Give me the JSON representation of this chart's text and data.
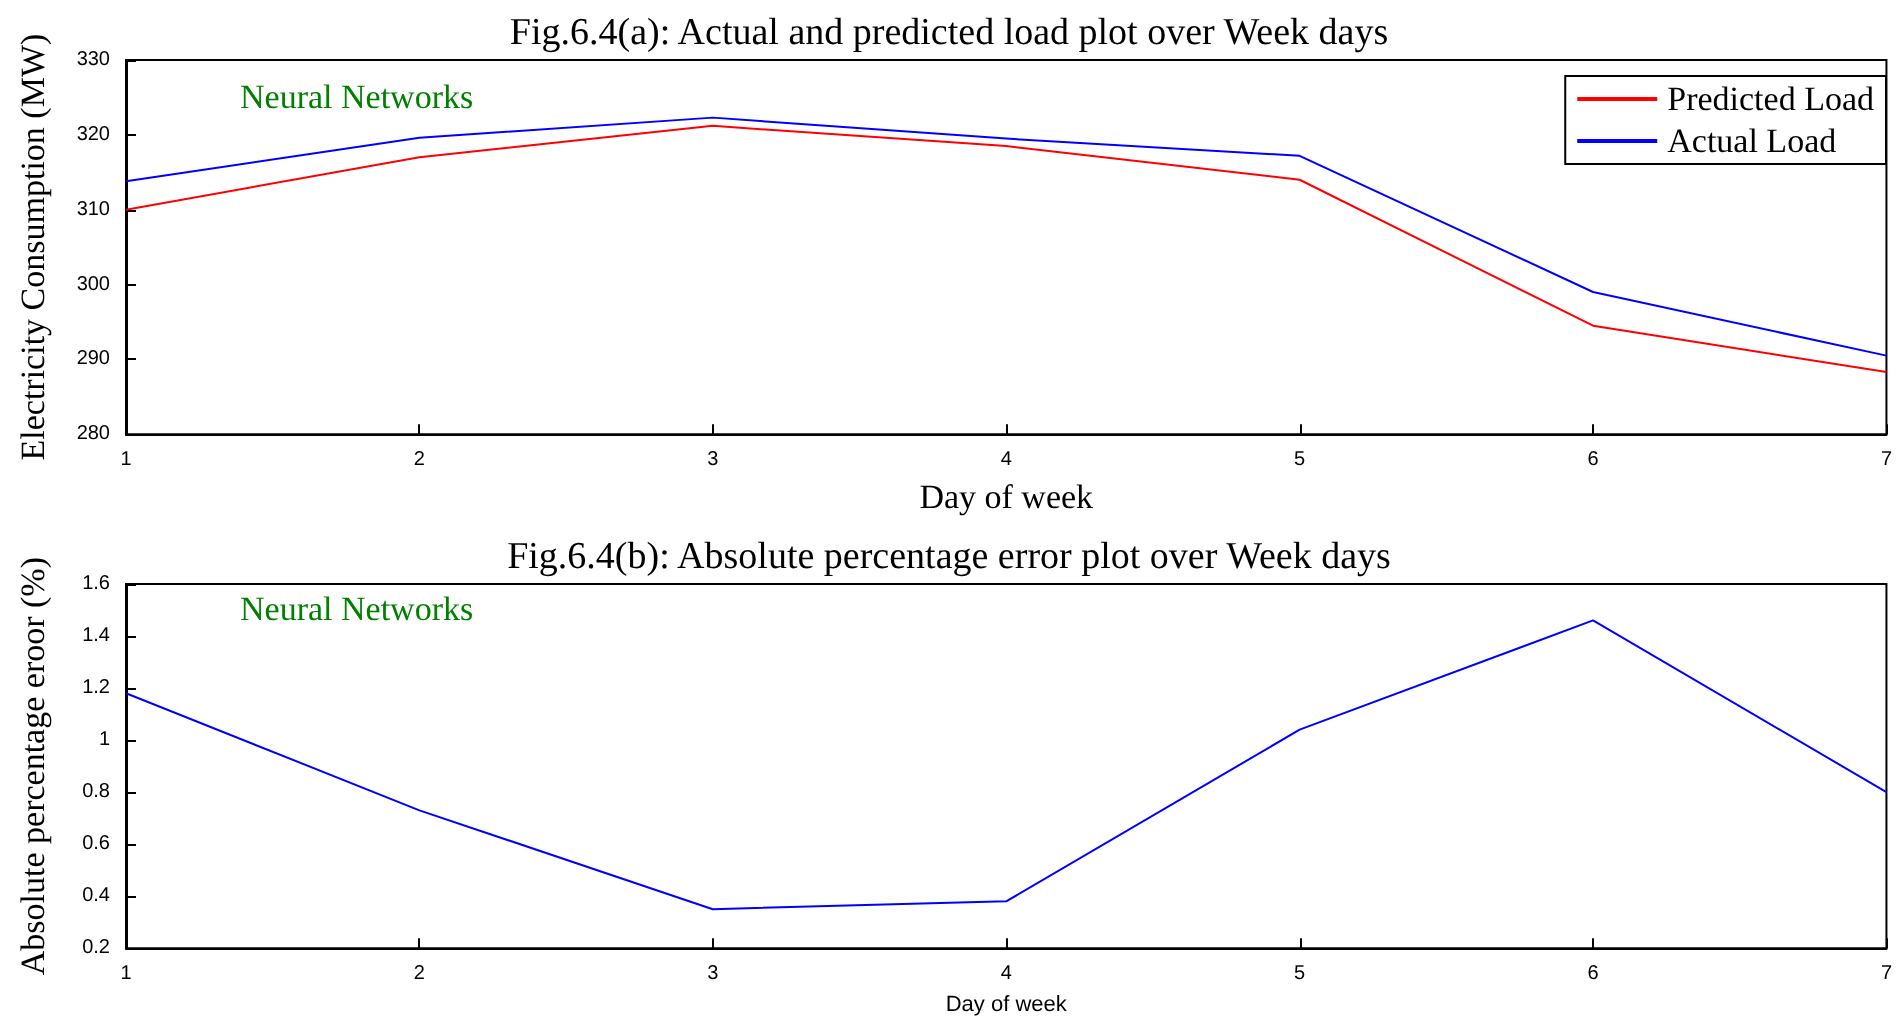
{
  "chart_data": [
    {
      "type": "line",
      "title": "Fig.6.4(a): Actual and predicted load plot over Week days",
      "xlabel": "Day of week",
      "ylabel": "Electricity Consumption (MW)",
      "annotations": [
        "Neural Networks"
      ],
      "x": [
        1,
        2,
        3,
        4,
        5,
        6,
        7
      ],
      "series": [
        {
          "name": "Predicted Load",
          "color": "#ff0000",
          "values": [
            310,
            317,
            321.2,
            318.5,
            314,
            294.5,
            288.3
          ]
        },
        {
          "name": "Actual Load",
          "color": "#0000ff",
          "values": [
            313.8,
            319.6,
            322.3,
            319.5,
            317.2,
            299,
            290.5
          ]
        }
      ],
      "xlim": [
        1,
        7
      ],
      "xticks": [
        1,
        2,
        3,
        4,
        5,
        6,
        7
      ],
      "ylim": [
        280,
        330
      ],
      "yticks": [
        280,
        290,
        300,
        310,
        320,
        330
      ],
      "grid": false,
      "legend": "top right",
      "marker": "none",
      "line_style": "solid"
    },
    {
      "type": "line",
      "title": "Fig.6.4(b): Absolute percentage error plot over Week days",
      "xlabel": "Day of week",
      "ylabel": "Absolute percentage eroor (%)",
      "annotations": [
        "Neural Networks"
      ],
      "x": [
        1,
        2,
        3,
        4,
        5,
        6,
        7
      ],
      "series": [
        {
          "color": "#0000ff",
          "values": [
            1.18,
            0.73,
            0.35,
            0.38,
            1.04,
            1.46,
            0.8
          ]
        }
      ],
      "xlim": [
        1,
        7
      ],
      "xticks": [
        1,
        2,
        3,
        4,
        5,
        6,
        7
      ],
      "ylim": [
        0.2,
        1.6
      ],
      "yticks": [
        0.2,
        0.4,
        0.6,
        0.8,
        1,
        1.2,
        1.4,
        1.6
      ],
      "grid": false,
      "legend": false,
      "marker": "none",
      "line_style": "solid"
    }
  ]
}
